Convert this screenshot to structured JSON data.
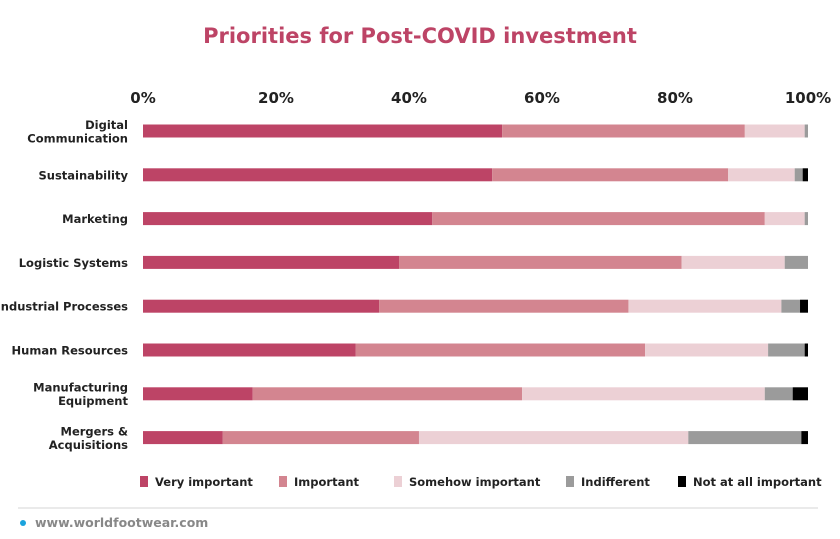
{
  "chart_data": {
    "type": "bar",
    "orientation": "horizontal",
    "stacked": true,
    "title": "Priorities for Post-COVID investment",
    "xlim": [
      0,
      100
    ],
    "x_ticks": [
      "0%",
      "20%",
      "40%",
      "60%",
      "80%",
      "100%"
    ],
    "x_axis_position": "top",
    "grid": false,
    "legend_position": "bottom",
    "categories": [
      [
        "Digital",
        "Communication"
      ],
      [
        "Sustainability"
      ],
      [
        "Marketing"
      ],
      [
        "Logistic Systems"
      ],
      [
        "Industrial Processes"
      ],
      [
        "Human Resources"
      ],
      [
        "Manufacturing",
        "Equipment"
      ],
      [
        "Mergers &",
        "Acquisitions"
      ]
    ],
    "series": [
      {
        "name": "Very important",
        "color": "#bd4466",
        "values": [
          54,
          52.5,
          43.5,
          38.5,
          35.5,
          32,
          16.5,
          12
        ]
      },
      {
        "name": "Important",
        "color": "#d38590",
        "values": [
          36.5,
          35.5,
          50,
          42.5,
          37.5,
          43.5,
          40.5,
          29.5
        ]
      },
      {
        "name": "Somehow important",
        "color": "#ecd0d5",
        "values": [
          9,
          10,
          6,
          15.5,
          23,
          18.5,
          36.5,
          40.5
        ]
      },
      {
        "name": "Indifferent",
        "color": "#9b9b9b",
        "values": [
          0.5,
          1.2,
          0.5,
          3.5,
          2.8,
          5.5,
          4.2,
          17
        ]
      },
      {
        "name": "Not at all important",
        "color": "#000000",
        "values": [
          0,
          0.8,
          0,
          0,
          1.2,
          0.5,
          2.3,
          1
        ]
      }
    ]
  },
  "footer": {
    "text": "www.worldfootwear.com",
    "dot_color": "#1aa3dd"
  }
}
